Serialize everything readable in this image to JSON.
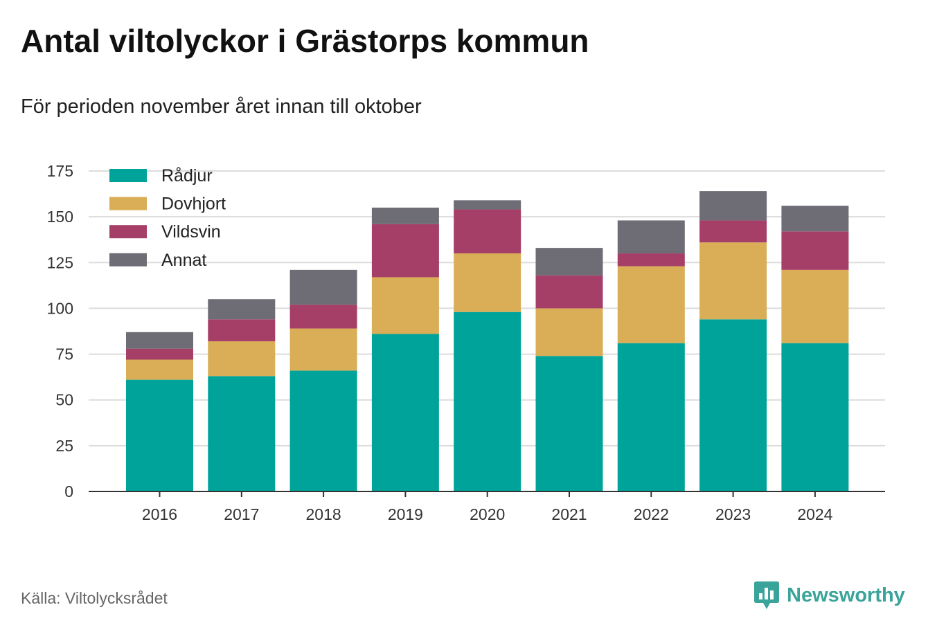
{
  "header": {
    "title": "Antal viltolyckor i Grästorps kommun",
    "subtitle": "För perioden november året innan till oktober"
  },
  "footer": {
    "source": "Källa: Viltolycksrådet",
    "brand": "Newsworthy",
    "brand_icon": "bar-chart-speech-bubble-icon",
    "brand_color": "#3aa49a"
  },
  "chart_data": {
    "type": "bar",
    "stacked": true,
    "categories": [
      "2016",
      "2017",
      "2018",
      "2019",
      "2020",
      "2021",
      "2022",
      "2023",
      "2024"
    ],
    "series": [
      {
        "name": "Rådjur",
        "color": "#00a39a",
        "values": [
          61,
          63,
          66,
          86,
          98,
          74,
          81,
          94,
          81
        ]
      },
      {
        "name": "Dovhjort",
        "color": "#d9ae57",
        "values": [
          11,
          19,
          23,
          31,
          32,
          26,
          42,
          42,
          40
        ]
      },
      {
        "name": "Vildsvin",
        "color": "#a53f68",
        "values": [
          6,
          12,
          13,
          29,
          24,
          18,
          7,
          12,
          21
        ]
      },
      {
        "name": "Annat",
        "color": "#6e6d75",
        "values": [
          9,
          11,
          19,
          9,
          5,
          15,
          18,
          16,
          14
        ]
      }
    ],
    "ylim": [
      0,
      175
    ],
    "yticks": [
      0,
      25,
      50,
      75,
      100,
      125,
      150,
      175
    ],
    "grid": true,
    "legend": "top-left"
  }
}
